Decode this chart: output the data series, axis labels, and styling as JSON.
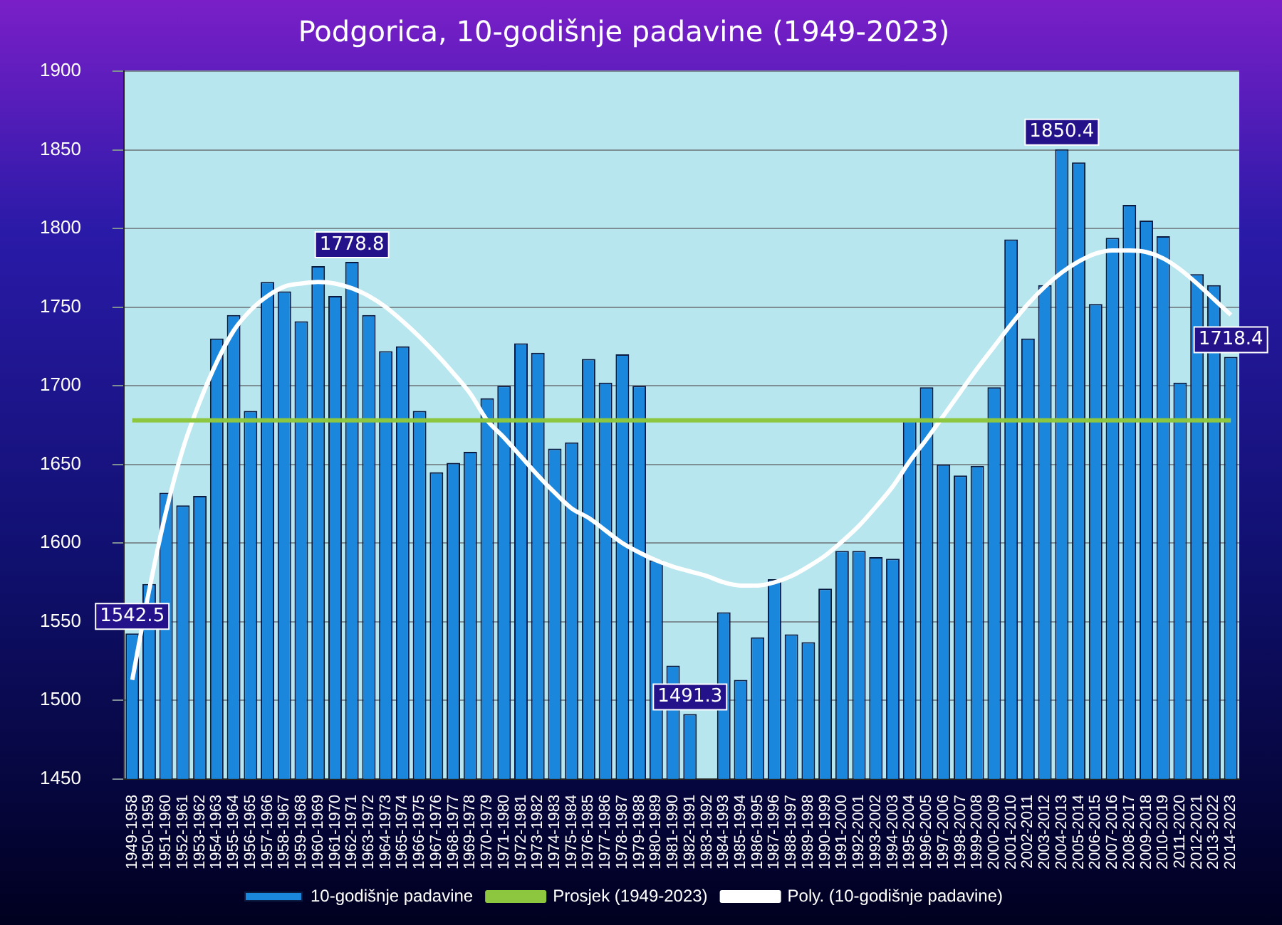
{
  "chart_data": {
    "type": "bar",
    "title": "Podgorica, 10-godišnje padavine (1949-2023)",
    "categories": [
      "1949-1958",
      "1950-1959",
      "1951-1960",
      "1952-1961",
      "1953-1962",
      "1954-1963",
      "1955-1964",
      "1956-1965",
      "1957-1966",
      "1958-1967",
      "1959-1968",
      "1960-1969",
      "1961-1970",
      "1962-1971",
      "1963-1972",
      "1964-1973",
      "1965-1974",
      "1966-1975",
      "1967-1976",
      "1968-1977",
      "1969-1978",
      "1970-1979",
      "1971-1980",
      "1972-1981",
      "1973-1982",
      "1974-1983",
      "1975-1984",
      "1976-1985",
      "1977-1986",
      "1978-1987",
      "1979-1988",
      "1980-1989",
      "1981-1990",
      "1982-1991",
      "1983-1992",
      "1984-1993",
      "1985-1994",
      "1986-1995",
      "1987-1996",
      "1988-1997",
      "1989-1998",
      "1990-1999",
      "1991-2000",
      "1992-2001",
      "1993-2002",
      "1994-2003",
      "1995-2004",
      "1996-2005",
      "1997-2006",
      "1998-2007",
      "1999-2008",
      "2000-2009",
      "2001-2010",
      "2002-2011",
      "2003-2012",
      "2004-2013",
      "2005-2014",
      "2006-2015",
      "2007-2016",
      "2008-2017",
      "2009-2018",
      "2010-2019",
      "2011-2020",
      "2012-2021",
      "2013-2022",
      "2014-2023"
    ],
    "series": [
      {
        "name": "10-godišnje padavine",
        "color": "#1a86dc",
        "values": [
          1542.5,
          1574,
          1632,
          1624,
          1630,
          1730,
          1745,
          1684,
          1766,
          1760,
          1741,
          1776,
          1757,
          1778.8,
          1745,
          1722,
          1725,
          1684,
          1645,
          1651,
          1658,
          1692,
          1700,
          1727,
          1721,
          1660,
          1664,
          1717,
          1702,
          1720,
          1700,
          1589,
          1522,
          1491.3,
          null,
          1556,
          1513,
          1540,
          1577,
          1542,
          1537,
          1571,
          1595,
          1595,
          1591,
          1590,
          1678,
          1699,
          1650,
          1643,
          1649,
          1699,
          1793,
          1730,
          1764,
          1850.4,
          1842,
          1752,
          1794,
          1815,
          1805,
          1795,
          1702,
          1771,
          1764,
          1718.4
        ],
        "value_labels": [
          "1542.5",
          null,
          null,
          null,
          null,
          null,
          null,
          null,
          null,
          null,
          null,
          null,
          null,
          "1778.8",
          null,
          null,
          null,
          null,
          null,
          null,
          null,
          null,
          null,
          null,
          null,
          null,
          null,
          null,
          null,
          null,
          null,
          null,
          null,
          "1491.3",
          null,
          null,
          null,
          null,
          null,
          null,
          null,
          null,
          null,
          null,
          null,
          null,
          null,
          null,
          null,
          null,
          null,
          null,
          null,
          null,
          null,
          "1850.4",
          null,
          null,
          null,
          null,
          null,
          null,
          null,
          null,
          null,
          "1718.4"
        ]
      },
      {
        "name": "Prosjek (1949-2023)",
        "type": "line",
        "color": "#8dc63f",
        "values": [
          1678,
          1678,
          1678,
          1678,
          1678,
          1678,
          1678,
          1678,
          1678,
          1678,
          1678,
          1678,
          1678,
          1678,
          1678,
          1678,
          1678,
          1678,
          1678,
          1678,
          1678,
          1678,
          1678,
          1678,
          1678,
          1678,
          1678,
          1678,
          1678,
          1678,
          1678,
          1678,
          1678,
          1678,
          1678,
          1678,
          1678,
          1678,
          1678,
          1678,
          1678,
          1678,
          1678,
          1678,
          1678,
          1678,
          1678,
          1678,
          1678,
          1678,
          1678,
          1678,
          1678,
          1678,
          1678,
          1678,
          1678,
          1678,
          1678,
          1678,
          1678,
          1678,
          1678,
          1678,
          1678,
          1678
        ]
      },
      {
        "name": "Poly. (10-godišnje padavine)",
        "type": "line",
        "color": "#ffffff",
        "values": [
          1513,
          1570,
          1620,
          1660,
          1690,
          1715,
          1735,
          1748,
          1757,
          1763,
          1765,
          1766,
          1765,
          1762,
          1757,
          1750,
          1741,
          1731,
          1720,
          1708,
          1695,
          1678,
          1667,
          1655,
          1643,
          1632,
          1622,
          1616,
          1608,
          1600,
          1594,
          1589,
          1585,
          1582,
          1579,
          1575,
          1573,
          1573,
          1575,
          1579,
          1585,
          1592,
          1601,
          1611,
          1623,
          1636,
          1652,
          1666,
          1681,
          1696,
          1711,
          1725,
          1739,
          1752,
          1763,
          1772,
          1779,
          1784,
          1786,
          1786,
          1785,
          1781,
          1774,
          1765,
          1755,
          1745
        ]
      }
    ],
    "ylim": [
      1450,
      1900
    ],
    "yticks": [
      1450,
      1500,
      1550,
      1600,
      1650,
      1700,
      1750,
      1800,
      1850,
      1900
    ],
    "grid": "y",
    "legend": "bottom",
    "marker": "none"
  }
}
